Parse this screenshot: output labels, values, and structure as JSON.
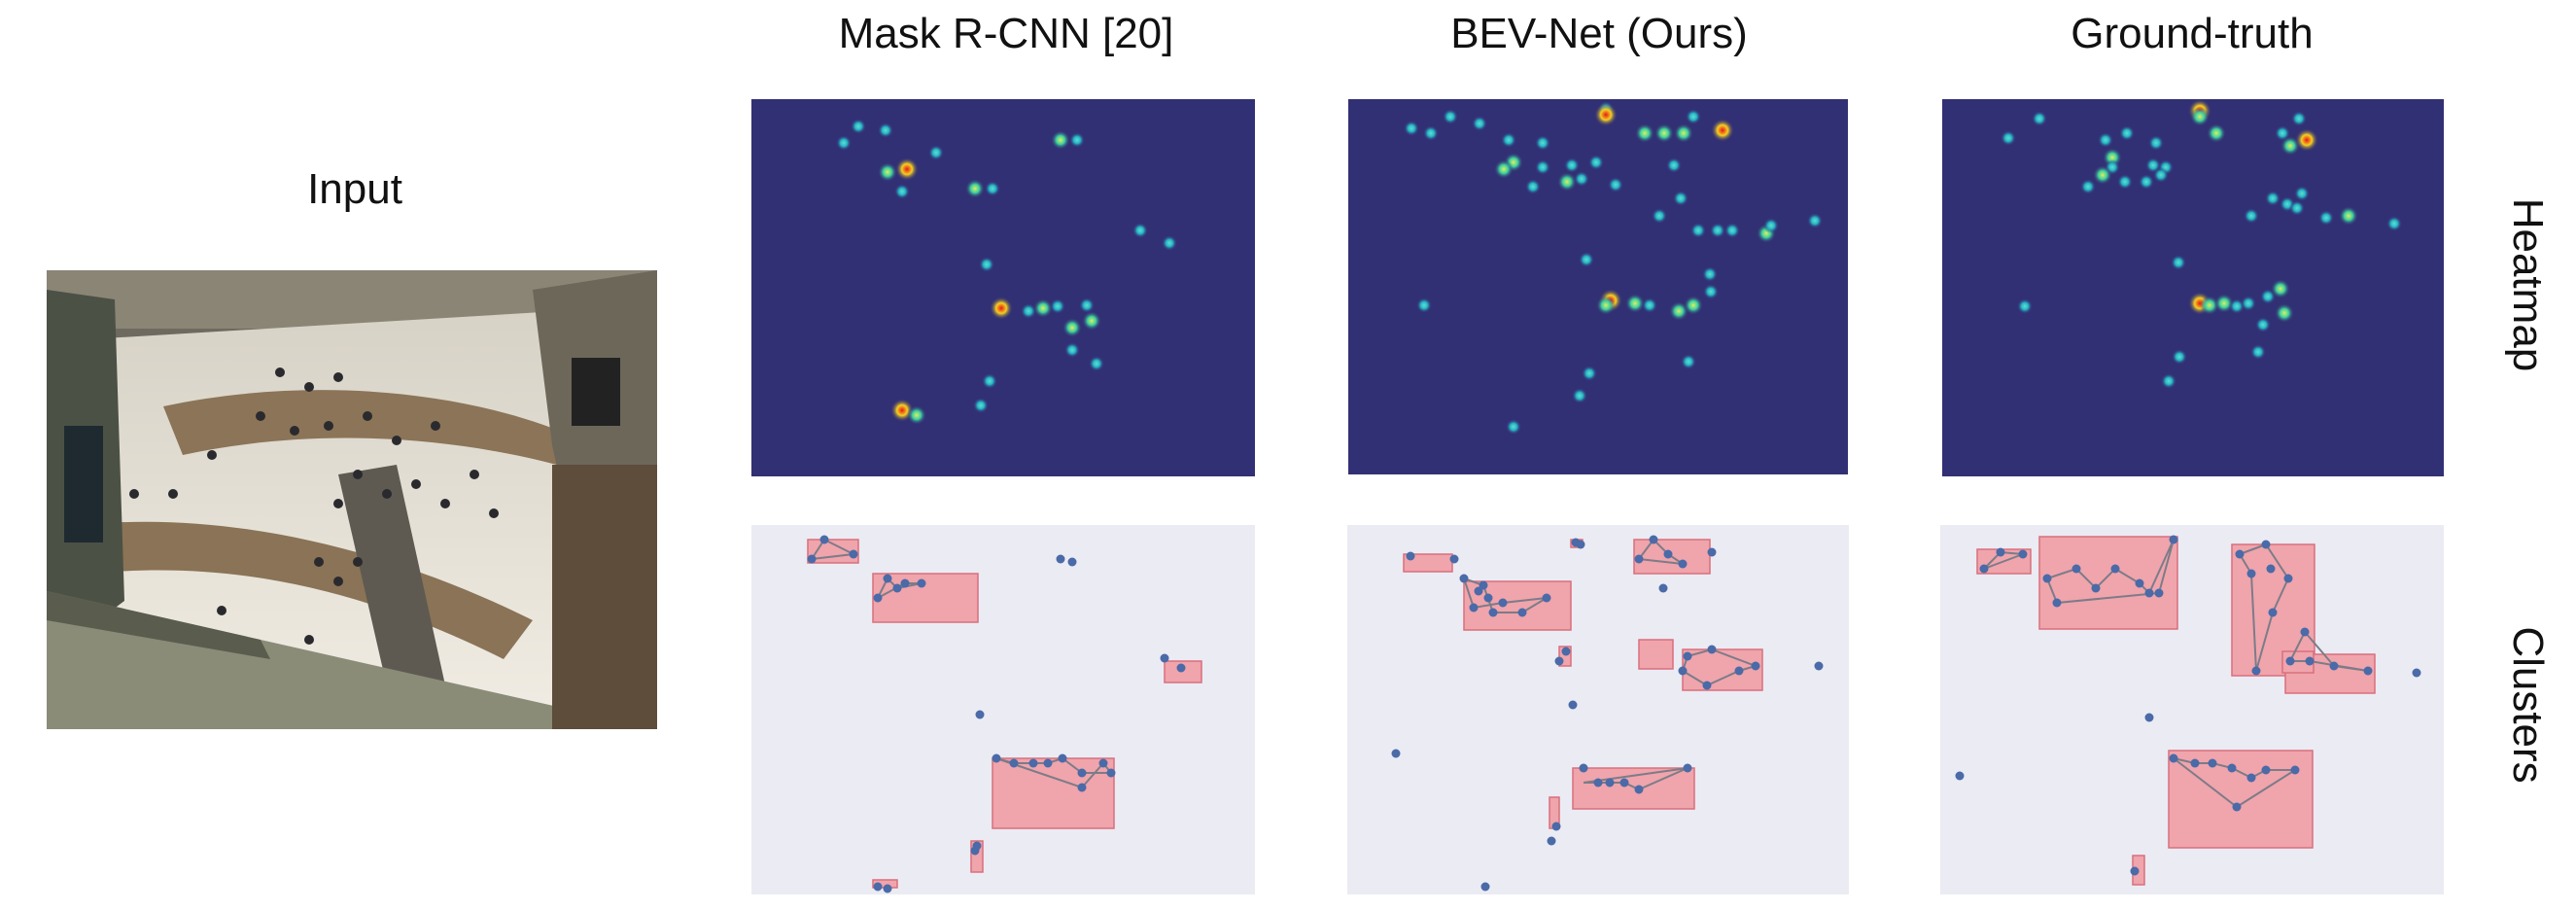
{
  "figure": {
    "input_label": "Input",
    "columns": [
      "Mask R-CNN [20]",
      "BEV-Net (Ours)",
      "Ground-truth"
    ],
    "rows": [
      "Heatmap",
      "Clusters"
    ]
  },
  "colors": {
    "heatmap_bg": "#323074",
    "cluster_bg": "#ebebf3",
    "box_fill": "#f0a4ac",
    "box_stroke": "#d8707c",
    "point": "#4a6aa8",
    "edge": "#7c7c88"
  }
}
